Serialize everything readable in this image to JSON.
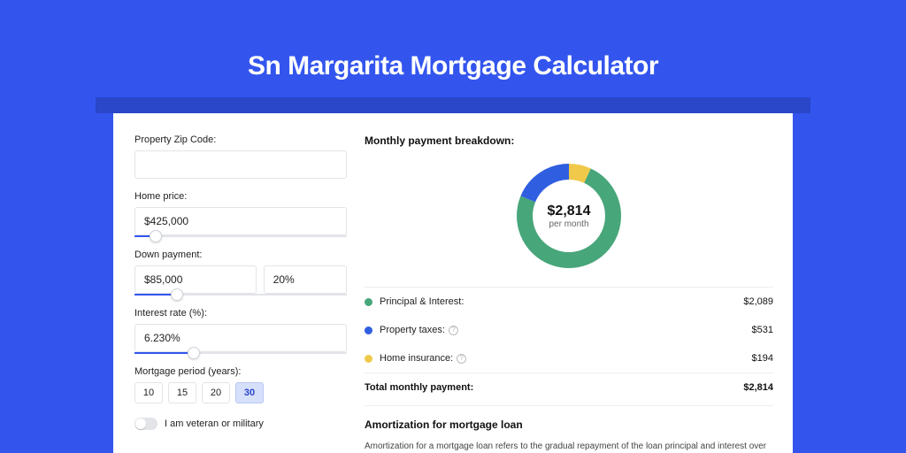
{
  "header": {
    "title": "Sn Margarita Mortgage Calculator",
    "background_color": "#3355ee",
    "shadow_band_color": "#2a46c9"
  },
  "form": {
    "zip": {
      "label": "Property Zip Code:",
      "value": ""
    },
    "home_price": {
      "label": "Home price:",
      "value": "$425,000",
      "slider_percent": 10
    },
    "down_payment": {
      "label": "Down payment:",
      "amount": "$85,000",
      "percent": "20%",
      "slider_percent": 20
    },
    "interest_rate": {
      "label": "Interest rate (%):",
      "value": "6.230%",
      "slider_percent": 28
    },
    "period": {
      "label": "Mortgage period (years):",
      "options": [
        "10",
        "15",
        "20",
        "30"
      ],
      "selected": "30"
    },
    "veteran": {
      "label": "I am veteran or military",
      "checked": false
    }
  },
  "breakdown": {
    "title": "Monthly payment breakdown:",
    "donut": {
      "amount": "$2,814",
      "subtext": "per month",
      "segments": [
        {
          "label": "Principal & Interest:",
          "value": "$2,089",
          "color": "#47a67a",
          "fraction": 0.742
        },
        {
          "label": "Property taxes:",
          "value": "$531",
          "color": "#2f5fe0",
          "fraction": 0.189,
          "has_info": true
        },
        {
          "label": "Home insurance:",
          "value": "$194",
          "color": "#f0c94a",
          "fraction": 0.069,
          "has_info": true
        }
      ],
      "thickness": 18
    },
    "total": {
      "label": "Total monthly payment:",
      "value": "$2,814"
    }
  },
  "amortization": {
    "title": "Amortization for mortgage loan",
    "text": "Amortization for a mortgage loan refers to the gradual repayment of the loan principal and interest over a specified"
  }
}
